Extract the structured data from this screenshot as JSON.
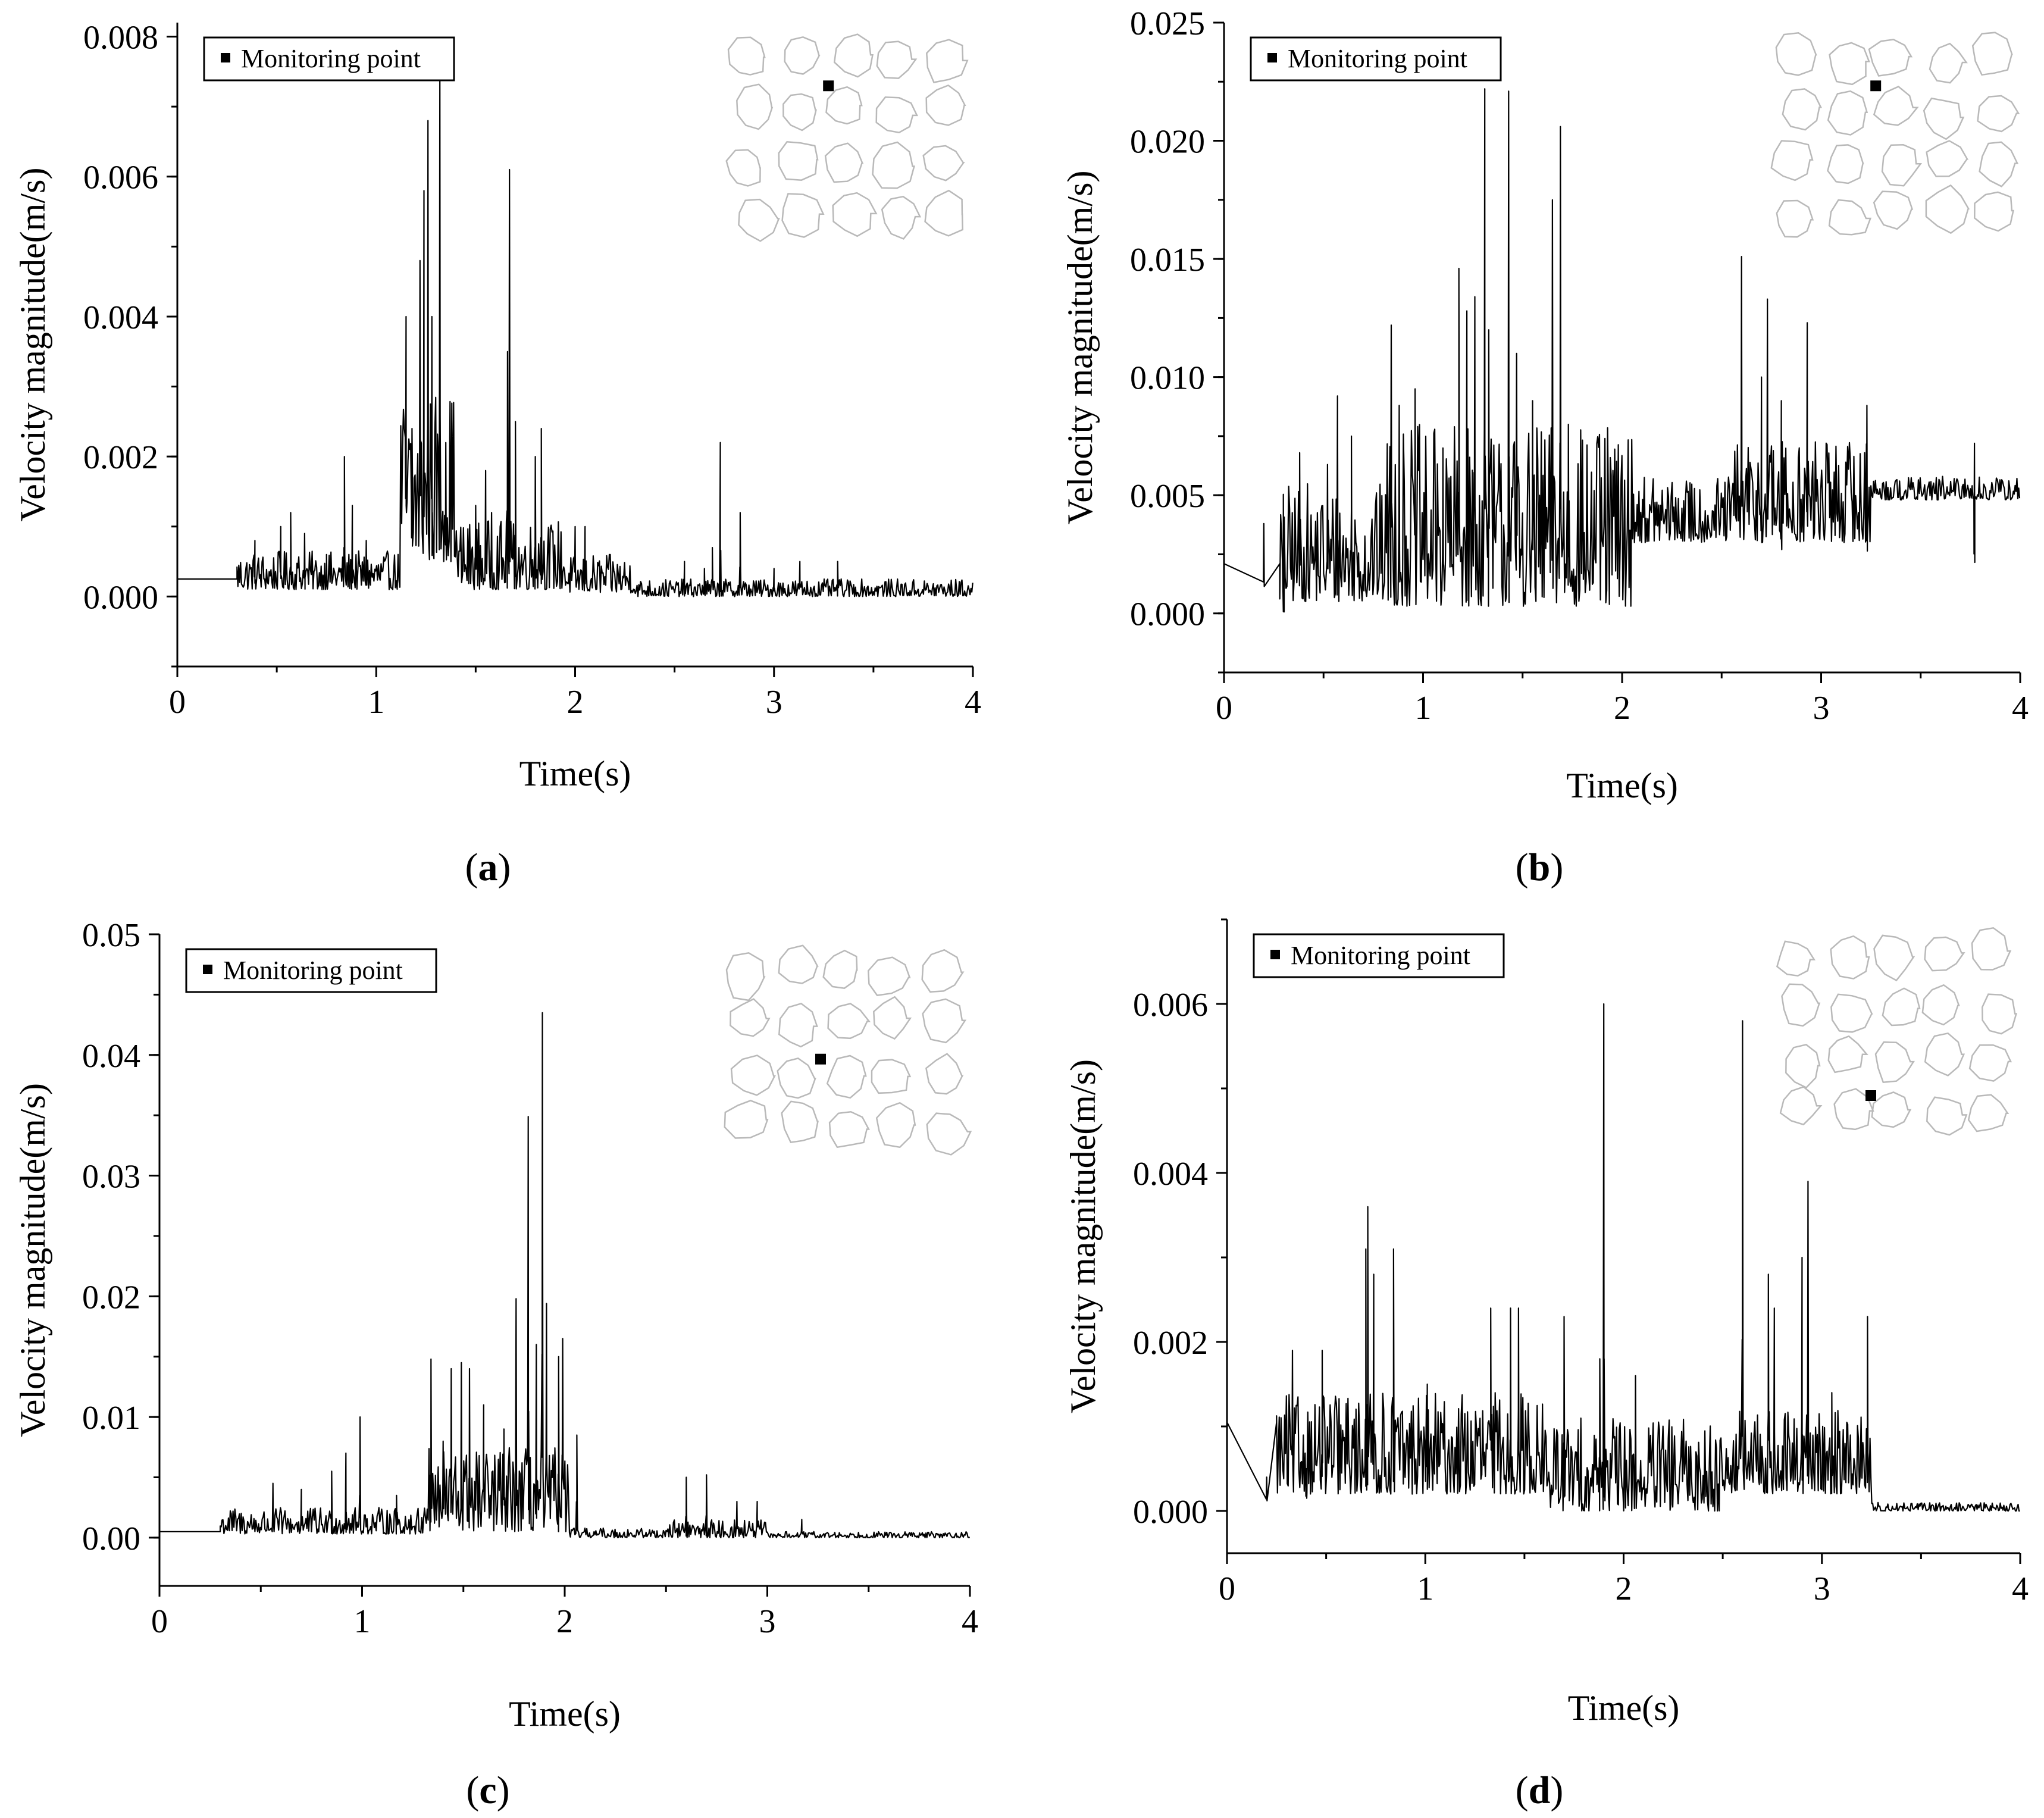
{
  "figure": {
    "legend_label": "Monitoring point",
    "x_axis_label": "Time(s)",
    "y_axis_label": "Velocity magnitude(m/s)",
    "line_color": "#000000",
    "inset_color": "#b9b9b9"
  },
  "chart_data": [
    {
      "id": "a",
      "type": "line",
      "panel_label": "(a)",
      "panel_letter": "a",
      "xlabel": "Time(s)",
      "ylabel": "Velocity magnitude(m/s)",
      "legend": "Monitoring point",
      "legend_position": "top-left",
      "xlim": [
        0,
        4
      ],
      "ylim": [
        -0.001,
        0.0082
      ],
      "x_ticks": [
        "0",
        "1",
        "2",
        "3",
        "4"
      ],
      "y_ticks": [
        {
          "value": 0.0,
          "label": "0.000"
        },
        {
          "value": 0.002,
          "label": "0.002"
        },
        {
          "value": 0.004,
          "label": "0.004"
        },
        {
          "value": 0.006,
          "label": "0.006"
        },
        {
          "value": 0.008,
          "label": "0.008"
        }
      ],
      "monitoring_point_location": "upper-middle",
      "series": [
        {
          "name": "Velocity magnitude",
          "baseline": 0.00025,
          "segments": [
            {
              "x0": 0.3,
              "x1": 1.12,
              "low": 0.0001,
              "high": 0.00065
            },
            {
              "x0": 1.12,
              "x1": 1.4,
              "low": 0.0005,
              "high": 0.003
            },
            {
              "x0": 1.4,
              "x1": 1.95,
              "low": 0.0001,
              "high": 0.0011
            },
            {
              "x0": 1.95,
              "x1": 2.3,
              "low": 5e-05,
              "high": 0.0006
            },
            {
              "x0": 2.3,
              "x1": 4.0,
              "low": 0.0,
              "high": 0.00025
            }
          ],
          "peaks": [
            [
              0.39,
              0.0008
            ],
            [
              0.52,
              0.001
            ],
            [
              0.57,
              0.0012
            ],
            [
              0.64,
              0.0009
            ],
            [
              0.75,
              0.0006
            ],
            [
              0.84,
              0.002
            ],
            [
              0.88,
              0.0013
            ],
            [
              0.95,
              0.0008
            ],
            [
              1.15,
              0.004
            ],
            [
              1.18,
              0.0024
            ],
            [
              1.22,
              0.0048
            ],
            [
              1.24,
              0.0058
            ],
            [
              1.26,
              0.0068
            ],
            [
              1.28,
              0.004
            ],
            [
              1.32,
              0.0075
            ],
            [
              1.35,
              0.0022
            ],
            [
              1.5,
              0.0013
            ],
            [
              1.55,
              0.0018
            ],
            [
              1.58,
              0.0012
            ],
            [
              1.66,
              0.0035
            ],
            [
              1.67,
              0.0061
            ],
            [
              1.7,
              0.0025
            ],
            [
              1.8,
              0.002
            ],
            [
              1.83,
              0.0024
            ],
            [
              2.0,
              0.001
            ],
            [
              2.05,
              0.001
            ],
            [
              2.55,
              0.0005
            ],
            [
              2.65,
              0.0004
            ],
            [
              2.69,
              0.0007
            ],
            [
              2.73,
              0.0022
            ],
            [
              2.83,
              0.0012
            ],
            [
              3.0,
              0.0004
            ],
            [
              3.13,
              0.0005
            ],
            [
              3.32,
              0.0005
            ]
          ]
        }
      ]
    },
    {
      "id": "b",
      "type": "line",
      "panel_label": "(b)",
      "panel_letter": "b",
      "xlabel": "Time(s)",
      "ylabel": "Velocity magnitude(m/s)",
      "legend": "Monitoring point",
      "legend_position": "top-left",
      "xlim": [
        0,
        4
      ],
      "ylim": [
        -0.0025,
        0.025
      ],
      "x_ticks": [
        "0",
        "1",
        "2",
        "3",
        "4"
      ],
      "y_ticks": [
        {
          "value": 0.0,
          "label": "0.000"
        },
        {
          "value": 0.005,
          "label": "0.005"
        },
        {
          "value": 0.01,
          "label": "0.010"
        },
        {
          "value": 0.015,
          "label": "0.015"
        },
        {
          "value": 0.02,
          "label": "0.020"
        },
        {
          "value": 0.025,
          "label": "0.025"
        }
      ],
      "monitoring_point_location": "upper-middle",
      "series": [
        {
          "name": "Velocity magnitude",
          "baseline": 0.0021,
          "segments": [
            {
              "x0": 0.28,
              "x1": 0.8,
              "low": 0.0005,
              "high": 0.0055
            },
            {
              "x0": 0.8,
              "x1": 2.05,
              "low": 0.0003,
              "high": 0.008
            },
            {
              "x0": 2.05,
              "x1": 2.55,
              "low": 0.003,
              "high": 0.0058
            },
            {
              "x0": 2.55,
              "x1": 3.25,
              "low": 0.003,
              "high": 0.0075
            },
            {
              "x0": 3.25,
              "x1": 4.0,
              "low": 0.0048,
              "high": 0.0058
            }
          ],
          "peaks": [
            [
              0.2,
              0.0038
            ],
            [
              0.3,
              0.0002
            ],
            [
              0.38,
              0.0068
            ],
            [
              0.52,
              0.0063
            ],
            [
              0.57,
              0.0092
            ],
            [
              0.64,
              0.0075
            ],
            [
              0.84,
              0.0122
            ],
            [
              0.88,
              0.0088
            ],
            [
              0.96,
              0.0095
            ],
            [
              1.1,
              0.007
            ],
            [
              1.18,
              0.0146
            ],
            [
              1.22,
              0.0128
            ],
            [
              1.26,
              0.0134
            ],
            [
              1.31,
              0.0222
            ],
            [
              1.33,
              0.012
            ],
            [
              1.43,
              0.0221
            ],
            [
              1.47,
              0.011
            ],
            [
              1.55,
              0.009
            ],
            [
              1.65,
              0.0175
            ],
            [
              1.69,
              0.0206
            ],
            [
              1.73,
              0.008
            ],
            [
              2.6,
              0.0151
            ],
            [
              2.7,
              0.01
            ],
            [
              2.73,
              0.0133
            ],
            [
              2.8,
              0.009
            ],
            [
              2.93,
              0.0123
            ],
            [
              3.23,
              0.0088
            ],
            [
              3.77,
              0.0072
            ]
          ]
        }
      ]
    },
    {
      "id": "c",
      "type": "line",
      "panel_label": "(c)",
      "panel_letter": "c",
      "xlabel": "Time(s)",
      "ylabel": "Velocity magnitude(m/s)",
      "legend": "Monitoring point",
      "legend_position": "top-left",
      "xlim": [
        0,
        4
      ],
      "ylim": [
        -0.004,
        0.05
      ],
      "x_ticks": [
        "0",
        "1",
        "2",
        "3",
        "4"
      ],
      "y_ticks": [
        {
          "value": 0.0,
          "label": "0.00"
        },
        {
          "value": 0.01,
          "label": "0.01"
        },
        {
          "value": 0.02,
          "label": "0.02"
        },
        {
          "value": 0.03,
          "label": "0.03"
        },
        {
          "value": 0.04,
          "label": "0.04"
        },
        {
          "value": 0.05,
          "label": "0.05"
        }
      ],
      "monitoring_point_location": "center",
      "series": [
        {
          "name": "Velocity magnitude",
          "baseline": 0.0005,
          "segments": [
            {
              "x0": 0.3,
              "x1": 1.3,
              "low": 0.0003,
              "high": 0.0025
            },
            {
              "x0": 1.3,
              "x1": 2.02,
              "low": 0.0005,
              "high": 0.0075
            },
            {
              "x0": 2.02,
              "x1": 2.5,
              "low": 0.0,
              "high": 0.0008
            },
            {
              "x0": 2.5,
              "x1": 3.0,
              "low": 0.0,
              "high": 0.0015
            },
            {
              "x0": 3.0,
              "x1": 4.0,
              "low": 0.0,
              "high": 0.0005
            }
          ],
          "peaks": [
            [
              0.56,
              0.0045
            ],
            [
              0.7,
              0.004
            ],
            [
              0.85,
              0.0055
            ],
            [
              0.92,
              0.007
            ],
            [
              0.99,
              0.01
            ],
            [
              1.17,
              0.0035
            ],
            [
              1.34,
              0.0148
            ],
            [
              1.4,
              0.008
            ],
            [
              1.44,
              0.014
            ],
            [
              1.49,
              0.0145
            ],
            [
              1.53,
              0.014
            ],
            [
              1.6,
              0.011
            ],
            [
              1.7,
              0.009
            ],
            [
              1.76,
              0.0198
            ],
            [
              1.82,
              0.0349
            ],
            [
              1.86,
              0.016
            ],
            [
              1.89,
              0.0435
            ],
            [
              1.91,
              0.0194
            ],
            [
              1.97,
              0.015
            ],
            [
              1.99,
              0.0165
            ],
            [
              2.06,
              0.0085
            ],
            [
              2.6,
              0.005
            ],
            [
              2.7,
              0.0052
            ],
            [
              2.85,
              0.003
            ],
            [
              2.95,
              0.003
            ],
            [
              3.17,
              0.0015
            ]
          ]
        }
      ]
    },
    {
      "id": "d",
      "type": "line",
      "panel_label": "(d)",
      "panel_letter": "d",
      "xlabel": "Time(s)",
      "ylabel": "Velocity magnitude(m/s)",
      "legend": "Monitoring point",
      "legend_position": "top-left",
      "xlim": [
        0,
        4
      ],
      "ylim": [
        -0.0005,
        0.007
      ],
      "x_ticks": [
        "0",
        "1",
        "2",
        "3",
        "4"
      ],
      "y_ticks": [
        {
          "value": 0.0,
          "label": "0.000"
        },
        {
          "value": 0.002,
          "label": "0.002"
        },
        {
          "value": 0.004,
          "label": "0.004"
        },
        {
          "value": 0.006,
          "label": "0.006"
        }
      ],
      "monitoring_point_location": "lower-middle",
      "series": [
        {
          "name": "Velocity magnitude",
          "baseline": 0.00105,
          "segments": [
            {
              "x0": 0.25,
              "x1": 1.6,
              "low": 0.0002,
              "high": 0.0014
            },
            {
              "x0": 1.6,
              "x1": 2.5,
              "low": 0.0,
              "high": 0.0011
            },
            {
              "x0": 2.5,
              "x1": 3.25,
              "low": 0.0002,
              "high": 0.0012
            },
            {
              "x0": 3.25,
              "x1": 4.0,
              "low": 0.0,
              "high": 0.0001
            }
          ],
          "peaks": [
            [
              0.2,
              0.0004
            ],
            [
              0.33,
              0.0019
            ],
            [
              0.4,
              0.0005
            ],
            [
              0.48,
              0.0019
            ],
            [
              0.7,
              0.0031
            ],
            [
              0.71,
              0.0036
            ],
            [
              0.74,
              0.0028
            ],
            [
              0.84,
              0.0031
            ],
            [
              1.01,
              0.0015
            ],
            [
              1.33,
              0.0024
            ],
            [
              1.43,
              0.0024
            ],
            [
              1.47,
              0.0024
            ],
            [
              1.7,
              0.0023
            ],
            [
              1.88,
              0.0018
            ],
            [
              1.9,
              0.006
            ],
            [
              2.06,
              0.0016
            ],
            [
              2.6,
              0.0058
            ],
            [
              2.73,
              0.0028
            ],
            [
              2.76,
              0.0024
            ],
            [
              2.9,
              0.003
            ],
            [
              2.93,
              0.0039
            ],
            [
              3.05,
              0.0014
            ],
            [
              3.23,
              0.0023
            ]
          ]
        }
      ]
    }
  ]
}
